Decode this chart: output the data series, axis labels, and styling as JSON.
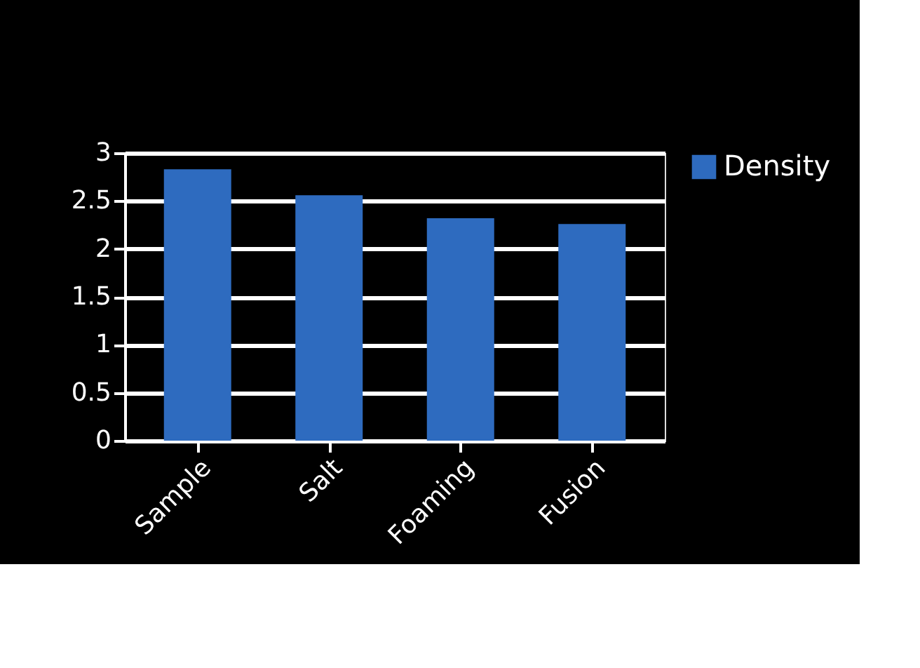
{
  "chart_data": {
    "type": "bar",
    "categories": [
      "Sample",
      "Salt",
      "Foaming",
      "Fusion"
    ],
    "series": [
      {
        "name": "Density",
        "color": "#2e6bbf",
        "values": [
          2.83,
          2.56,
          2.32,
          2.26
        ]
      }
    ],
    "ylim": [
      0,
      3
    ],
    "yticks": [
      0,
      0.5,
      1,
      1.5,
      2,
      2.5,
      3
    ],
    "grid": "y",
    "legend": "right"
  }
}
